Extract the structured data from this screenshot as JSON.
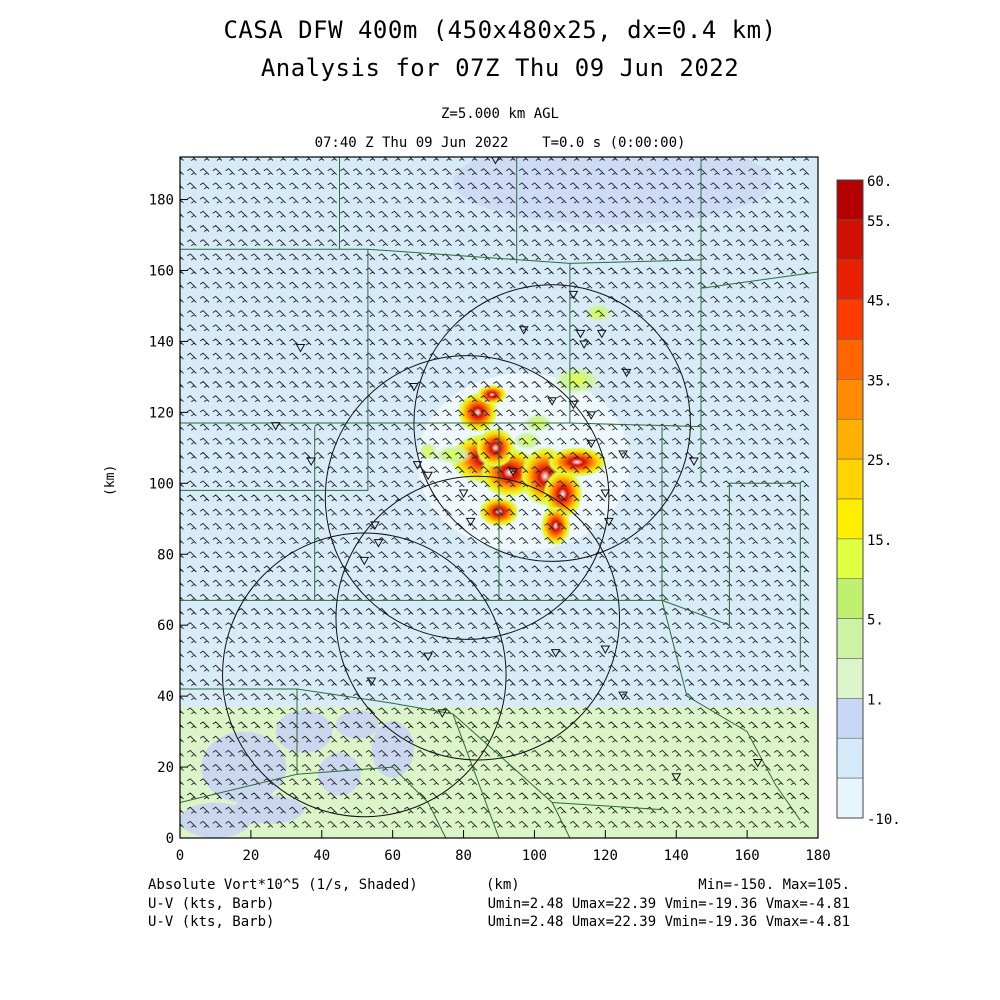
{
  "header": {
    "title_line1": "CASA DFW 400m (450x480x25, dx=0.4 km)",
    "title_line2": "Analysis for 07Z Thu 09 Jun 2022",
    "level": "Z=5.000 km AGL",
    "valid_time": "07:40 Z Thu 09 Jun 2022    T=0.0 s (0:00:00)"
  },
  "axes": {
    "x_label": "(km)",
    "y_label": "(km)",
    "x_ticks": [
      "0",
      "20",
      "40",
      "60",
      "80",
      "100",
      "120",
      "140",
      "160",
      "180"
    ],
    "y_ticks": [
      "0",
      "20",
      "40",
      "60",
      "80",
      "100",
      "120",
      "140",
      "160",
      "180"
    ],
    "x_range": [
      0,
      180
    ],
    "y_range": [
      0,
      192
    ]
  },
  "colorbar": {
    "labels": [
      "60.",
      "55.",
      "45.",
      "35.",
      "25.",
      "15.",
      "5.",
      "1.",
      "-10."
    ],
    "colors": [
      "#b40000",
      "#d01000",
      "#e82000",
      "#ff3c00",
      "#ff6600",
      "#ff8c00",
      "#ffb000",
      "#ffd400",
      "#ffee00",
      "#e0ff40",
      "#c0f070",
      "#ccf2a4",
      "#dcf5c8",
      "#c8d8f4",
      "#d4eaf8",
      "#e6f6fc"
    ]
  },
  "footer": {
    "field_label": "Absolute Vort*10^5 (1/s, Shaded)",
    "xunit": "(km)",
    "minmax": "Min=-150. Max=105.",
    "barb1_label": "U-V (kts, Barb)",
    "barb2_label": "U-V (kts, Barb)",
    "uv_stats1": "Umin=2.48 Umax=22.39 Vmin=-19.36 Vmax=-4.81",
    "uv_stats2": "Umin=2.48 Umax=22.39 Vmin=-19.36 Vmax=-4.81"
  },
  "map_data": {
    "radar_rings": [
      {
        "cx": 105,
        "cy": 117,
        "r": 39
      },
      {
        "cx": 81,
        "cy": 96,
        "r": 40
      },
      {
        "cx": 52,
        "cy": 46,
        "r": 40
      },
      {
        "cx": 84,
        "cy": 62,
        "r": 40
      }
    ],
    "radar_sites": [
      [
        89,
        191
      ],
      [
        111,
        153
      ],
      [
        113,
        142
      ],
      [
        119,
        142
      ],
      [
        97,
        143
      ],
      [
        114,
        139
      ],
      [
        34,
        138
      ],
      [
        126,
        131
      ],
      [
        66,
        127
      ],
      [
        105,
        123
      ],
      [
        111,
        122
      ],
      [
        27,
        116
      ],
      [
        116,
        119
      ],
      [
        116,
        111
      ],
      [
        125,
        108
      ],
      [
        145,
        106
      ],
      [
        37,
        106
      ],
      [
        67,
        105
      ],
      [
        94,
        103
      ],
      [
        70,
        102
      ],
      [
        80,
        97
      ],
      [
        120,
        97
      ],
      [
        82,
        89
      ],
      [
        121,
        89
      ],
      [
        55,
        88
      ],
      [
        56,
        83
      ],
      [
        52,
        78
      ],
      [
        70,
        51
      ],
      [
        106,
        52
      ],
      [
        120,
        53
      ],
      [
        54,
        44
      ],
      [
        125,
        40
      ],
      [
        74,
        35
      ],
      [
        140,
        17
      ],
      [
        163,
        21
      ]
    ],
    "storm_cells": [
      {
        "x": 86,
        "y": 107,
        "rx": 7,
        "ry": 5,
        "i": 0.9
      },
      {
        "x": 93,
        "y": 103,
        "rx": 6,
        "ry": 5,
        "i": 1.0
      },
      {
        "x": 89,
        "y": 110,
        "rx": 4,
        "ry": 4,
        "i": 0.9
      },
      {
        "x": 103,
        "y": 102,
        "rx": 5,
        "ry": 6,
        "i": 0.9
      },
      {
        "x": 108,
        "y": 97,
        "rx": 4,
        "ry": 5,
        "i": 0.9
      },
      {
        "x": 112,
        "y": 106,
        "rx": 6,
        "ry": 3,
        "i": 0.8
      },
      {
        "x": 84,
        "y": 120,
        "rx": 4,
        "ry": 4,
        "i": 0.75
      },
      {
        "x": 88,
        "y": 125,
        "rx": 3,
        "ry": 2,
        "i": 0.65
      },
      {
        "x": 90,
        "y": 92,
        "rx": 4,
        "ry": 3,
        "i": 0.75
      },
      {
        "x": 106,
        "y": 88,
        "rx": 3,
        "ry": 4,
        "i": 0.7
      },
      {
        "x": 77,
        "y": 108,
        "rx": 4,
        "ry": 2,
        "i": 0.55
      },
      {
        "x": 70,
        "y": 109,
        "rx": 2,
        "ry": 2,
        "i": 0.5
      },
      {
        "x": 98,
        "y": 112,
        "rx": 3,
        "ry": 2,
        "i": 0.55
      },
      {
        "x": 112,
        "y": 129,
        "rx": 5,
        "ry": 3,
        "i": 0.3
      },
      {
        "x": 118,
        "y": 148,
        "rx": 3,
        "ry": 2,
        "i": 0.2
      },
      {
        "x": 101,
        "y": 117,
        "rx": 3,
        "ry": 2,
        "i": 0.45
      }
    ],
    "green_zone_top_y": 37
  }
}
